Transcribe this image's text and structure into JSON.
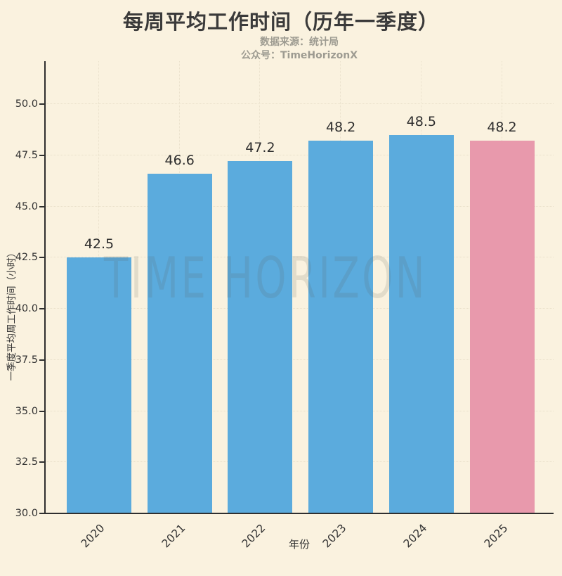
{
  "title": "每周平均工作时间（历年一季度）",
  "subtitle": {
    "line1": "数据来源：统计局",
    "line2": "公众号：TimeHorizonX"
  },
  "watermark": "TIME HORIZON",
  "chart_data": {
    "type": "bar",
    "title": "每周平均工作时间（历年一季度）",
    "xlabel": "年份",
    "ylabel": "一季度平均周工作时间（小时）",
    "categories": [
      "2020",
      "2021",
      "2022",
      "2023",
      "2024",
      "2025"
    ],
    "values": [
      42.5,
      46.6,
      47.2,
      48.2,
      48.5,
      48.2
    ],
    "value_labels": [
      "42.5",
      "46.6",
      "47.2",
      "48.2",
      "48.5",
      "48.2"
    ],
    "bar_colors": [
      "#5BABDD",
      "#5BABDD",
      "#5BABDD",
      "#5BABDD",
      "#5BABDD",
      "#E899AC"
    ],
    "bar_color_default": "#5BABDD",
    "bar_color_highlight": "#E899AC",
    "highlighted_category": "2025",
    "ylim": [
      30.0,
      50.0
    ],
    "yticks": [
      30.0,
      32.5,
      35.0,
      37.5,
      40.0,
      42.5,
      45.0,
      47.5,
      50.0
    ],
    "ytick_labels": [
      "30.0",
      "32.5",
      "35.0",
      "37.5",
      "40.0",
      "42.5",
      "45.0",
      "47.5",
      "50.0"
    ],
    "grid": "dotted, horizontal and vertical, behind bars",
    "legend": "none",
    "background_color": "#FAF2DF",
    "axis_color": "#2f2f2f",
    "text_color": "#333333"
  }
}
